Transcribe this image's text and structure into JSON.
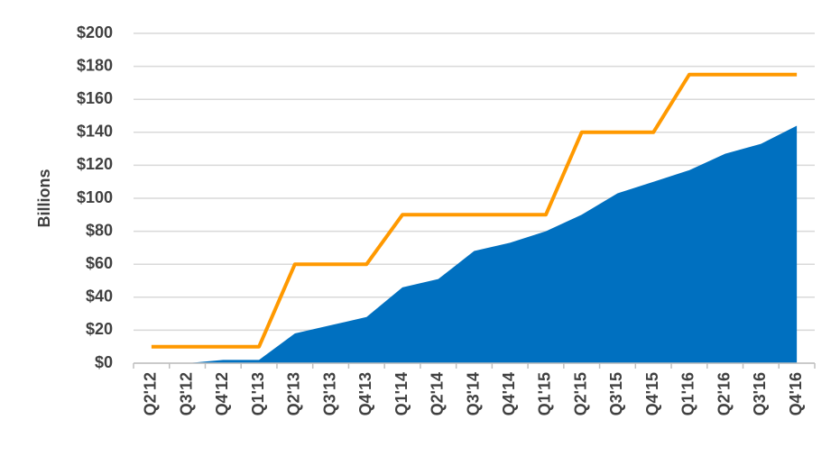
{
  "chart_data": {
    "type": "area",
    "y_label": "Billions",
    "categories": [
      "Q2'12",
      "Q3'12",
      "Q4'12",
      "Q1'13",
      "Q2'13",
      "Q3'13",
      "Q4'13",
      "Q1'14",
      "Q2'14",
      "Q3'14",
      "Q4'14",
      "Q1'15",
      "Q2'15",
      "Q3'15",
      "Q4'15",
      "Q1'16",
      "Q2'16",
      "Q3'16",
      "Q4'16"
    ],
    "series": [
      {
        "type": "area",
        "color": "#0070c0",
        "values": [
          0,
          0,
          2,
          2,
          18,
          23,
          28,
          46,
          51,
          68,
          73,
          80,
          90,
          103,
          110,
          117,
          127,
          133,
          144
        ]
      },
      {
        "type": "line",
        "color": "#ff9900",
        "values": [
          10,
          10,
          10,
          10,
          60,
          60,
          60,
          90,
          90,
          90,
          90,
          90,
          140,
          140,
          140,
          175,
          175,
          175,
          175
        ]
      }
    ],
    "ylim": [
      0,
      200
    ],
    "yticks": [
      {
        "value": 0,
        "label": "$0"
      },
      {
        "value": 20,
        "label": "$20"
      },
      {
        "value": 40,
        "label": "$40"
      },
      {
        "value": 60,
        "label": "$60"
      },
      {
        "value": 80,
        "label": "$80"
      },
      {
        "value": 100,
        "label": "$100"
      },
      {
        "value": 120,
        "label": "$120"
      },
      {
        "value": 140,
        "label": "$140"
      },
      {
        "value": 160,
        "label": "$160"
      },
      {
        "value": 180,
        "label": "$180"
      },
      {
        "value": 200,
        "label": "$200"
      }
    ],
    "grid": true
  }
}
